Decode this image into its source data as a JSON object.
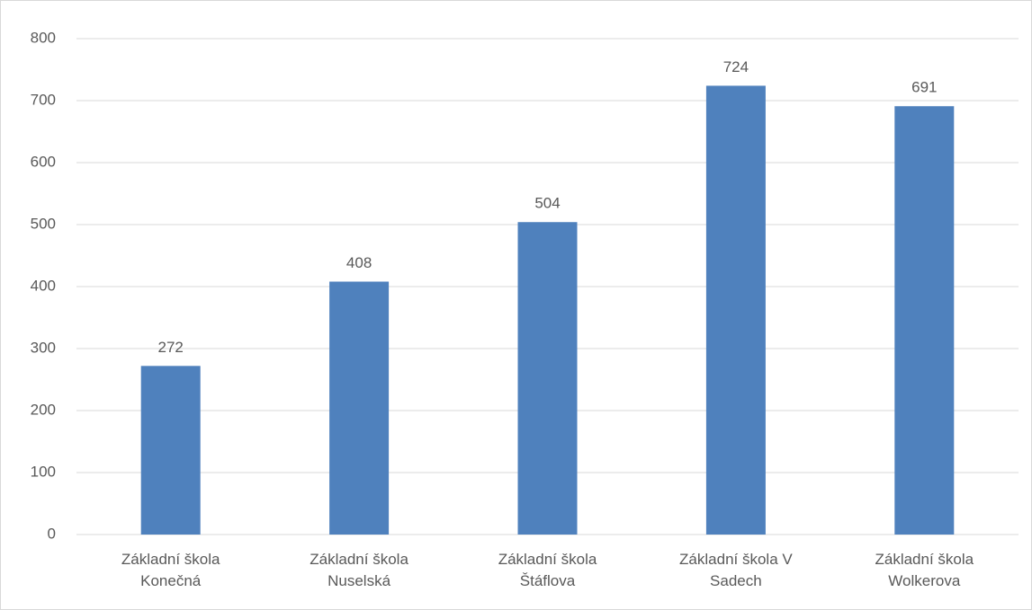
{
  "chart_data": {
    "type": "bar",
    "categories": [
      "Základní škola Konečná",
      "Základní škola Nuselská",
      "Základní škola Štáflova",
      "Základní škola V Sadech",
      "Základní škola Wolkerova"
    ],
    "values": [
      272,
      408,
      504,
      724,
      691
    ],
    "color": "#4f81bd",
    "ylim": [
      0,
      800
    ],
    "yticks": [
      0,
      100,
      200,
      300,
      400,
      500,
      600,
      700,
      800
    ],
    "grid": true
  }
}
